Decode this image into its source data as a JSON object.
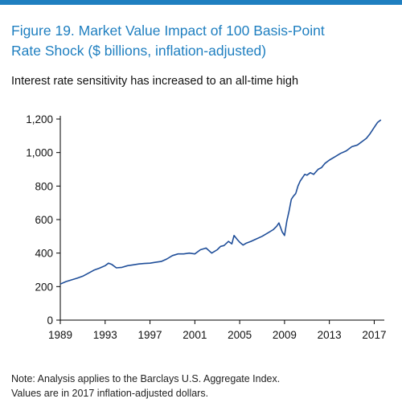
{
  "header": {
    "title_line1": "Figure 19. Market Value Impact of 100 Basis-Point",
    "title_line2": "Rate Shock ($ billions, inflation-adjusted)",
    "subtitle": "Interest rate sensitivity has increased to an all-time high"
  },
  "note": {
    "line1": "Note: Analysis applies to the Barclays U.S. Aggregate Index.",
    "line2": "Values are in 2017 inflation-adjusted dollars."
  },
  "colors": {
    "title": "#1f7fc0",
    "rule": "#1f7fc0",
    "line": "#1f4e99",
    "axis": "#000000"
  },
  "chart_data": {
    "type": "line",
    "title": "Figure 19. Market Value Impact of 100 Basis-Point Rate Shock ($ billions, inflation-adjusted)",
    "xlabel": "",
    "ylabel": "",
    "xlim": [
      1989,
      2017.9
    ],
    "ylim": [
      0,
      1200
    ],
    "grid": false,
    "x_ticks": [
      1989,
      1993,
      1997,
      2001,
      2005,
      2009,
      2013,
      2017
    ],
    "y_ticks": [
      0,
      200,
      400,
      600,
      800,
      1000,
      1200
    ],
    "y_tick_labels": [
      "0",
      "200",
      "400",
      "600",
      "800",
      "1,000",
      "1,200"
    ],
    "series": [
      {
        "name": "",
        "x": [
          1989,
          1989.5,
          1990,
          1990.5,
          1991,
          1991.5,
          1992,
          1992.5,
          1993,
          1993.3,
          1993.6,
          1994,
          1994.5,
          1995,
          1995.5,
          1996,
          1996.5,
          1997,
          1997.5,
          1998,
          1998.5,
          1999,
          1999.5,
          2000,
          2000.5,
          2001,
          2001.5,
          2002,
          2002.5,
          2003,
          2003.3,
          2003.6,
          2004,
          2004.3,
          2004.5,
          2004.8,
          2005,
          2005.3,
          2005.6,
          2006,
          2006.5,
          2007,
          2007.5,
          2008,
          2008.3,
          2008.5,
          2008.8,
          2009,
          2009.2,
          2009.4,
          2009.6,
          2009.8,
          2010,
          2010.2,
          2010.4,
          2010.6,
          2010.8,
          2011,
          2011.3,
          2011.6,
          2012,
          2012.3,
          2012.6,
          2013,
          2013.5,
          2014,
          2014.5,
          2015,
          2015.5,
          2016,
          2016.3,
          2016.6,
          2017,
          2017.3,
          2017.6
        ],
        "y": [
          215,
          230,
          240,
          250,
          262,
          280,
          298,
          310,
          325,
          340,
          332,
          312,
          315,
          325,
          330,
          335,
          338,
          340,
          345,
          350,
          365,
          385,
          395,
          395,
          400,
          395,
          420,
          430,
          400,
          420,
          440,
          445,
          470,
          455,
          505,
          480,
          465,
          448,
          460,
          470,
          485,
          500,
          520,
          540,
          560,
          580,
          525,
          505,
          590,
          650,
          720,
          740,
          755,
          800,
          830,
          850,
          870,
          865,
          880,
          870,
          900,
          910,
          935,
          955,
          975,
          995,
          1010,
          1035,
          1045,
          1070,
          1085,
          1110,
          1150,
          1180,
          1195
        ]
      }
    ]
  }
}
